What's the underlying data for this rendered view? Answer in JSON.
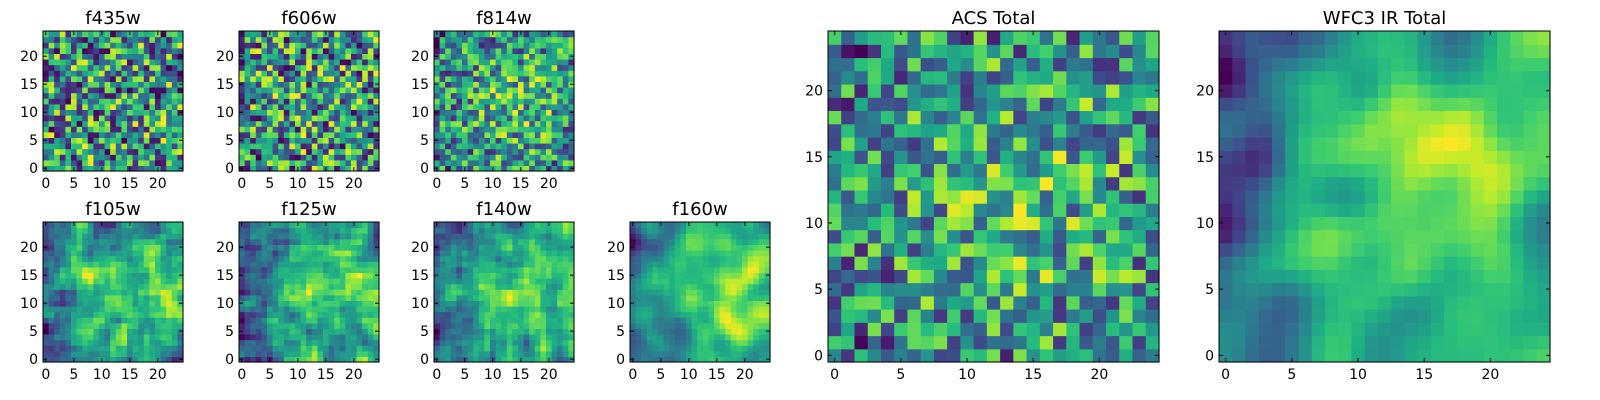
{
  "chart_data": {
    "type": "heatmap",
    "grid_size": 25,
    "colormap": "viridis",
    "panels": [
      {
        "id": "f435w",
        "title": "f435w",
        "xticks": [
          0,
          5,
          10,
          15,
          20
        ],
        "yticks": [
          0,
          5,
          10,
          15,
          20
        ],
        "vmin": 0,
        "vmax": 1,
        "pattern": "noise",
        "seed": 11,
        "smooth": 0,
        "center": 0.0,
        "gradient": 0.0
      },
      {
        "id": "f606w",
        "title": "f606w",
        "xticks": [
          0,
          5,
          10,
          15,
          20
        ],
        "yticks": [
          0,
          5,
          10,
          15,
          20
        ],
        "vmin": 0,
        "vmax": 1,
        "pattern": "noise",
        "seed": 23,
        "smooth": 0,
        "center": 0.05,
        "gradient": 0.0
      },
      {
        "id": "f814w",
        "title": "f814w",
        "xticks": [
          0,
          5,
          10,
          15,
          20
        ],
        "yticks": [
          0,
          5,
          10,
          15,
          20
        ],
        "vmin": 0,
        "vmax": 1,
        "pattern": "noise",
        "seed": 37,
        "smooth": 0,
        "center": 0.25,
        "gradient": 0.05
      },
      {
        "id": "f105w",
        "title": "f105w",
        "xticks": [
          0,
          5,
          10,
          15,
          20
        ],
        "yticks": [
          0,
          5,
          10,
          15,
          20
        ],
        "vmin": 0,
        "vmax": 1,
        "pattern": "smooth",
        "seed": 41,
        "smooth": 1,
        "center": 0.35,
        "gradient": 0.25
      },
      {
        "id": "f125w",
        "title": "f125w",
        "xticks": [
          0,
          5,
          10,
          15,
          20
        ],
        "yticks": [
          0,
          5,
          10,
          15,
          20
        ],
        "vmin": 0,
        "vmax": 1,
        "pattern": "smooth",
        "seed": 53,
        "smooth": 1,
        "center": 0.35,
        "gradient": 0.3
      },
      {
        "id": "f140w",
        "title": "f140w",
        "xticks": [
          0,
          5,
          10,
          15,
          20
        ],
        "yticks": [
          0,
          5,
          10,
          15,
          20
        ],
        "vmin": 0,
        "vmax": 1,
        "pattern": "smooth",
        "seed": 67,
        "smooth": 1,
        "center": 0.35,
        "gradient": 0.35
      },
      {
        "id": "f160w",
        "title": "f160w",
        "xticks": [
          0,
          5,
          10,
          15,
          20
        ],
        "yticks": [
          0,
          5,
          10,
          15,
          20
        ],
        "vmin": 0,
        "vmax": 1,
        "pattern": "smooth",
        "seed": 79,
        "smooth": 2,
        "center": 0.4,
        "gradient": 0.4
      },
      {
        "id": "acs-total",
        "title": "ACS Total",
        "xticks": [
          0,
          5,
          10,
          15,
          20
        ],
        "yticks": [
          0,
          5,
          10,
          15,
          20
        ],
        "vmin": 0,
        "vmax": 1,
        "pattern": "noise",
        "seed": 97,
        "smooth": 0,
        "center": 0.3,
        "gradient": 0.05
      },
      {
        "id": "wfc3-ir-total",
        "title": "WFC3 IR Total",
        "xticks": [
          0,
          5,
          10,
          15,
          20
        ],
        "yticks": [
          0,
          5,
          10,
          15,
          20
        ],
        "vmin": 0,
        "vmax": 1,
        "pattern": "smooth",
        "seed": 113,
        "smooth": 3,
        "center": 0.45,
        "gradient": 0.55
      }
    ]
  }
}
